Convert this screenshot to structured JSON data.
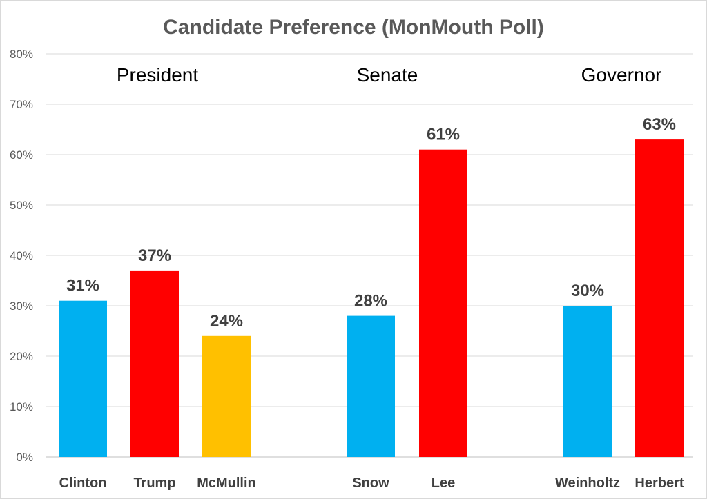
{
  "chart_data": {
    "type": "bar",
    "title": "Candidate Preference (MonMouth Poll)",
    "ylim": [
      0,
      80
    ],
    "yticks": [
      "0%",
      "10%",
      "20%",
      "30%",
      "40%",
      "50%",
      "60%",
      "70%",
      "80%"
    ],
    "grid": true,
    "legend": "none",
    "groups": [
      {
        "label": "President",
        "categories": [
          "Clinton",
          "Trump",
          "McMullin"
        ]
      },
      {
        "label": "Senate",
        "categories": [
          "Snow",
          "Lee"
        ]
      },
      {
        "label": "Governor",
        "categories": [
          "Weinholtz",
          "Herbert"
        ]
      }
    ],
    "bars": [
      {
        "category": "Clinton",
        "value": 31,
        "label": "31%",
        "color": "#00b0f0"
      },
      {
        "category": "Trump",
        "value": 37,
        "label": "37%",
        "color": "#ff0000"
      },
      {
        "category": "McMullin",
        "value": 24,
        "label": "24%",
        "color": "#ffc000"
      },
      {
        "category": "Snow",
        "value": 28,
        "label": "28%",
        "color": "#00b0f0"
      },
      {
        "category": "Lee",
        "value": 61,
        "label": "61%",
        "color": "#ff0000"
      },
      {
        "category": "Weinholtz",
        "value": 30,
        "label": "30%",
        "color": "#00b0f0"
      },
      {
        "category": "Herbert",
        "value": 63,
        "label": "63%",
        "color": "#ff0000"
      }
    ]
  }
}
